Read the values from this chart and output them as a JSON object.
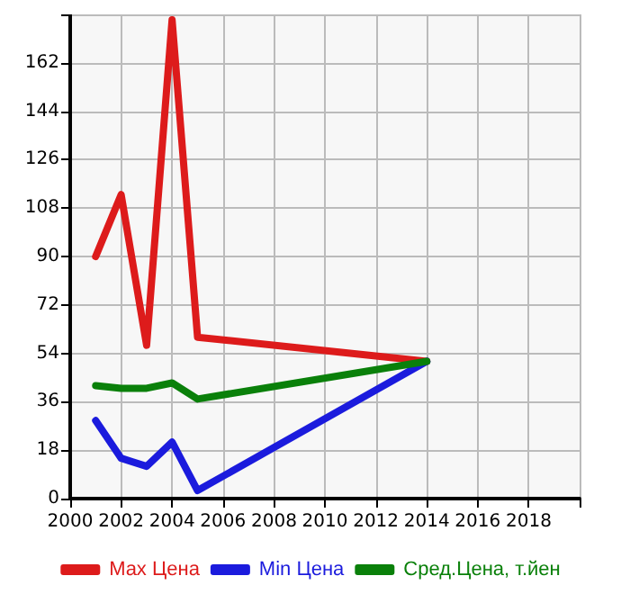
{
  "chart_data": {
    "type": "line",
    "x": [
      2001,
      2002,
      2003,
      2004,
      2005,
      2014
    ],
    "series": [
      {
        "name": "Max Цена",
        "color": "#dd1b1b",
        "values": [
          90,
          113,
          57,
          178,
          60,
          51
        ]
      },
      {
        "name": "Min Цена",
        "color": "#1b1bdd",
        "values": [
          29,
          15,
          12,
          21,
          3,
          51
        ]
      },
      {
        "name": "Сред.Цена, т.йен",
        "color": "#0a800a",
        "values": [
          42,
          41,
          41,
          43,
          37,
          51
        ]
      }
    ],
    "xlim": [
      2000,
      2020
    ],
    "xticks": [
      2000,
      2002,
      2004,
      2006,
      2008,
      2010,
      2012,
      2014,
      2016,
      2018,
      {
        "value": 2020,
        "label": null
      }
    ],
    "ylim": [
      0,
      180
    ],
    "yticks": [
      0,
      18,
      36,
      54,
      72,
      90,
      108,
      126,
      144,
      162,
      {
        "value": 180,
        "label": null
      }
    ],
    "grid": true,
    "legend": "bottom",
    "marker": "none",
    "line_style": "solid"
  }
}
